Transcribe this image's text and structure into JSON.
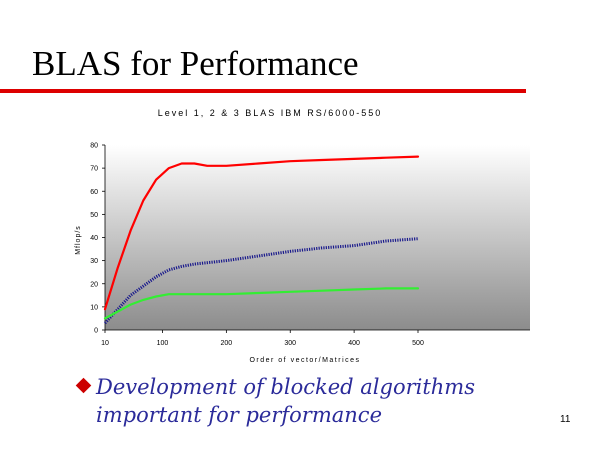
{
  "slide": {
    "title": "BLAS for Performance",
    "bullet_text": "Development of blocked algorithms important for performance",
    "page_number": "11"
  },
  "colors": {
    "title_rule": "#dd0000",
    "bullet": "#cc0000",
    "bullet_text": "#2b2b9a"
  },
  "chart_data": {
    "type": "line",
    "title": "Level 1, 2 & 3 BLAS IBM RS/6000-550",
    "xlabel": "Order of vector/Matrices",
    "ylabel": "Mflop/s",
    "x_ticks": [
      10,
      100,
      200,
      300,
      400,
      500
    ],
    "y_ticks": [
      0,
      10,
      20,
      30,
      40,
      50,
      60,
      70,
      80
    ],
    "ylim": [
      0,
      80
    ],
    "grid": false,
    "legend": "none",
    "background": "gradient grey",
    "series": [
      {
        "color": "#ff0000",
        "style": "solid",
        "x": [
          10,
          30,
          50,
          70,
          90,
          110,
          130,
          150,
          170,
          200,
          250,
          300,
          350,
          400,
          450,
          500
        ],
        "values": [
          9,
          27,
          43,
          56,
          65,
          70,
          72,
          72,
          71,
          71,
          72,
          73,
          73.5,
          74,
          74.5,
          75
        ]
      },
      {
        "color": "#1a1a8c",
        "style": "dotted",
        "x": [
          10,
          30,
          50,
          70,
          90,
          110,
          130,
          150,
          200,
          250,
          300,
          350,
          400,
          450,
          500
        ],
        "values": [
          3,
          9,
          15,
          19,
          23,
          26,
          27.5,
          28.5,
          30,
          32,
          34,
          35.5,
          36.5,
          38.5,
          39.5
        ]
      },
      {
        "color": "#33ee33",
        "style": "solid",
        "x": [
          10,
          30,
          50,
          70,
          90,
          110,
          130,
          150,
          200,
          250,
          300,
          350,
          400,
          450,
          500
        ],
        "values": [
          5,
          8,
          11,
          13,
          14.5,
          15.5,
          15.5,
          15.5,
          15.5,
          16,
          16.5,
          17,
          17.5,
          18,
          18
        ]
      }
    ]
  }
}
